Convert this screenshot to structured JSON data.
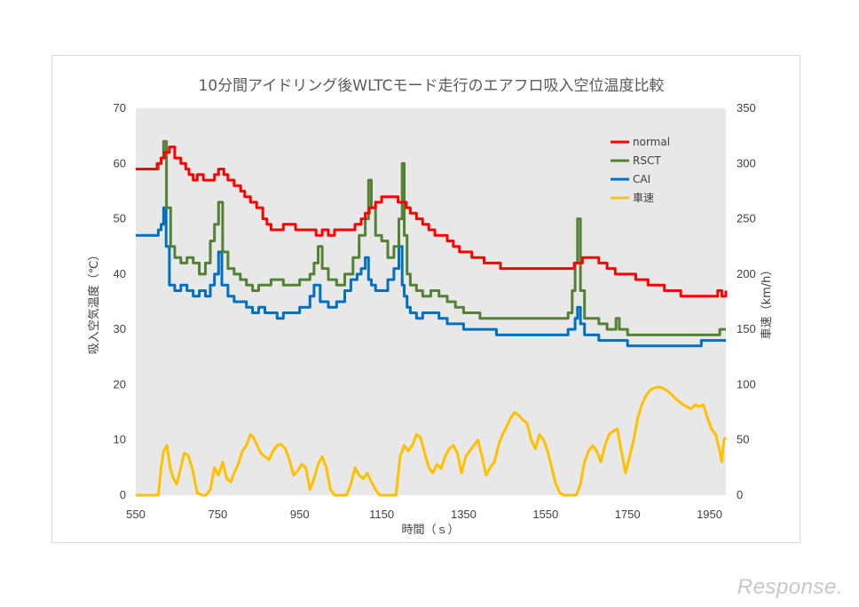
{
  "chart_data": {
    "type": "line",
    "title": "10分間アイドリング後WLTCモード走行のエアフロ吸入空位温度比較",
    "xlabel": "時間（ｓ）",
    "ylabel": "吸入空気温度（℃）",
    "y2label": "車速（km/h）",
    "xlim": [
      550,
      1990
    ],
    "ylim": [
      0,
      70
    ],
    "y2lim": [
      0,
      350
    ],
    "x_ticks": [
      550,
      750,
      950,
      1150,
      1350,
      1550,
      1750,
      1950
    ],
    "y_ticks": [
      0,
      10,
      20,
      30,
      40,
      50,
      60,
      70
    ],
    "y2_ticks": [
      0,
      50,
      100,
      150,
      200,
      250,
      300,
      350
    ],
    "grid": false,
    "legend_position": "top-right",
    "series": [
      {
        "name": "normal",
        "color": "#ff0000",
        "axis": "left",
        "x": [
          550,
          598,
          602,
          612,
          620,
          632,
          645,
          660,
          672,
          680,
          690,
          700,
          715,
          730,
          742,
          752,
          765,
          775,
          790,
          806,
          816,
          830,
          845,
          860,
          870,
          880,
          895,
          910,
          925,
          940,
          960,
          975,
          990,
          1005,
          1020,
          1035,
          1050,
          1065,
          1085,
          1100,
          1110,
          1120,
          1135,
          1150,
          1170,
          1190,
          1200,
          1210,
          1220,
          1235,
          1250,
          1265,
          1280,
          1295,
          1310,
          1325,
          1340,
          1355,
          1370,
          1385,
          1400,
          1420,
          1440,
          1460,
          1480,
          1500,
          1520,
          1540,
          1560,
          1580,
          1600,
          1620,
          1640,
          1660,
          1680,
          1700,
          1720,
          1735,
          1750,
          1770,
          1800,
          1840,
          1880,
          1920,
          1950,
          1960,
          1970,
          1980,
          1990
        ],
        "y": [
          59,
          59,
          60,
          61,
          62,
          63,
          61,
          60,
          59,
          58,
          57,
          58,
          57,
          57,
          58,
          59,
          58,
          57,
          56,
          55,
          54,
          53,
          52,
          50,
          49,
          48,
          48,
          49,
          49,
          48,
          48,
          48,
          47,
          48,
          47,
          48,
          48,
          48,
          49,
          50,
          51,
          52,
          53,
          54,
          54,
          53,
          53,
          52,
          51,
          50,
          49,
          48,
          47,
          47,
          46,
          45,
          44,
          44,
          43,
          43,
          42,
          42,
          41,
          41,
          41,
          41,
          41,
          41,
          41,
          41,
          41,
          42,
          43,
          43,
          42,
          41,
          40,
          40,
          40,
          39,
          38,
          37,
          36,
          36,
          36,
          36,
          37,
          36,
          37
        ]
      },
      {
        "name": "RSCT",
        "color": "#548235",
        "axis": "left",
        "x": [
          550,
          598,
          605,
          612,
          618,
          625,
          635,
          645,
          660,
          675,
          690,
          705,
          720,
          732,
          742,
          752,
          762,
          775,
          790,
          805,
          820,
          835,
          850,
          865,
          880,
          895,
          910,
          930,
          950,
          965,
          975,
          985,
          995,
          1005,
          1020,
          1040,
          1060,
          1080,
          1095,
          1110,
          1118,
          1125,
          1135,
          1150,
          1165,
          1180,
          1192,
          1200,
          1205,
          1212,
          1220,
          1235,
          1250,
          1270,
          1290,
          1310,
          1330,
          1350,
          1370,
          1390,
          1410,
          1430,
          1450,
          1470,
          1490,
          1510,
          1530,
          1550,
          1570,
          1590,
          1605,
          1615,
          1622,
          1628,
          1635,
          1645,
          1660,
          1680,
          1700,
          1715,
          1722,
          1730,
          1750,
          1780,
          1810,
          1840,
          1870,
          1900,
          1930,
          1960,
          1975,
          1990
        ],
        "y": [
          59,
          59,
          60,
          61,
          64,
          52,
          45,
          43,
          42,
          43,
          42,
          40,
          42,
          46,
          49,
          53,
          44,
          41,
          40,
          39,
          38,
          37,
          38,
          38,
          39,
          39,
          38,
          38,
          39,
          39,
          40,
          42,
          45,
          41,
          39,
          38,
          40,
          43,
          47,
          50,
          57,
          52,
          47,
          46,
          43,
          45,
          50,
          60,
          47,
          40,
          38,
          37,
          36,
          37,
          36,
          35,
          34,
          33,
          33,
          32,
          32,
          32,
          32,
          32,
          32,
          32,
          32,
          32,
          32,
          32,
          33,
          37,
          42,
          50,
          37,
          32,
          32,
          31,
          30,
          30,
          32,
          30,
          29,
          29,
          29,
          29,
          29,
          29,
          29,
          29,
          30,
          30
        ]
      },
      {
        "name": "CAI",
        "color": "#0070c0",
        "axis": "left",
        "x": [
          550,
          598,
          605,
          612,
          618,
          624,
          632,
          645,
          660,
          675,
          690,
          705,
          720,
          732,
          742,
          752,
          760,
          775,
          790,
          805,
          820,
          835,
          850,
          865,
          880,
          895,
          910,
          930,
          950,
          965,
          975,
          985,
          1000,
          1020,
          1040,
          1060,
          1075,
          1090,
          1100,
          1110,
          1118,
          1125,
          1135,
          1150,
          1165,
          1180,
          1192,
          1200,
          1205,
          1212,
          1220,
          1235,
          1250,
          1270,
          1290,
          1310,
          1330,
          1350,
          1370,
          1390,
          1410,
          1430,
          1450,
          1470,
          1490,
          1510,
          1530,
          1550,
          1570,
          1590,
          1605,
          1615,
          1622,
          1628,
          1635,
          1645,
          1660,
          1680,
          1700,
          1720,
          1735,
          1750,
          1780,
          1810,
          1840,
          1870,
          1900,
          1930,
          1960,
          1975,
          1990
        ],
        "y": [
          47,
          47,
          48,
          49,
          52,
          45,
          38,
          37,
          38,
          37,
          36,
          37,
          36,
          38,
          40,
          44,
          38,
          36,
          35,
          35,
          34,
          33,
          34,
          33,
          33,
          32,
          33,
          33,
          34,
          34,
          36,
          38,
          35,
          34,
          35,
          37,
          39,
          40,
          41,
          43,
          39,
          38,
          37,
          37,
          39,
          41,
          45,
          38,
          36,
          34,
          33,
          32,
          33,
          33,
          32,
          31,
          31,
          30,
          30,
          30,
          30,
          29,
          29,
          29,
          29,
          29,
          29,
          29,
          29,
          29,
          30,
          30,
          32,
          34,
          31,
          29,
          29,
          28,
          28,
          28,
          28,
          27,
          27,
          27,
          27,
          27,
          27,
          28,
          28,
          28,
          28
        ]
      },
      {
        "name": "車速",
        "color": "#ffc000",
        "axis": "right",
        "x": [
          550,
          568,
          588,
          605,
          612,
          618,
          626,
          634,
          642,
          650,
          660,
          668,
          678,
          688,
          700,
          712,
          722,
          732,
          742,
          752,
          762,
          772,
          782,
          790,
          800,
          810,
          820,
          830,
          838,
          846,
          855,
          865,
          875,
          885,
          895,
          905,
          915,
          925,
          935,
          945,
          955,
          965,
          975,
          985,
          995,
          1005,
          1015,
          1025,
          1035,
          1045,
          1055,
          1065,
          1075,
          1085,
          1095,
          1105,
          1115,
          1125,
          1135,
          1145,
          1155,
          1165,
          1175,
          1185,
          1195,
          1205,
          1215,
          1225,
          1235,
          1245,
          1255,
          1265,
          1275,
          1285,
          1295,
          1305,
          1315,
          1325,
          1335,
          1345,
          1355,
          1365,
          1375,
          1385,
          1395,
          1405,
          1415,
          1425,
          1435,
          1445,
          1455,
          1465,
          1475,
          1485,
          1495,
          1505,
          1515,
          1525,
          1535,
          1545,
          1555,
          1565,
          1575,
          1585,
          1595,
          1605,
          1615,
          1625,
          1635,
          1645,
          1655,
          1665,
          1675,
          1685,
          1695,
          1705,
          1715,
          1725,
          1735,
          1745,
          1755,
          1765,
          1775,
          1785,
          1795,
          1805,
          1815,
          1825,
          1835,
          1845,
          1855,
          1865,
          1875,
          1885,
          1895,
          1905,
          1915,
          1925,
          1935,
          1945,
          1955,
          1965,
          1975,
          1980,
          1985,
          1990
        ],
        "y": [
          0,
          0,
          0,
          0,
          25,
          40,
          45,
          25,
          15,
          10,
          25,
          38,
          36,
          24,
          2,
          0,
          0,
          5,
          25,
          18,
          30,
          15,
          12,
          20,
          28,
          40,
          45,
          55,
          52,
          45,
          38,
          35,
          32,
          40,
          45,
          46,
          42,
          32,
          18,
          22,
          28,
          25,
          5,
          15,
          28,
          35,
          25,
          5,
          0,
          0,
          0,
          0,
          10,
          25,
          18,
          15,
          20,
          12,
          5,
          0,
          0,
          0,
          0,
          0,
          35,
          45,
          40,
          45,
          55,
          52,
          38,
          25,
          20,
          28,
          24,
          35,
          42,
          45,
          38,
          20,
          35,
          40,
          45,
          50,
          35,
          18,
          25,
          30,
          45,
          55,
          62,
          70,
          75,
          72,
          68,
          65,
          50,
          42,
          55,
          50,
          40,
          25,
          10,
          2,
          0,
          0,
          0,
          0,
          10,
          30,
          40,
          45,
          40,
          30,
          45,
          55,
          58,
          60,
          40,
          20,
          35,
          50,
          70,
          82,
          90,
          95,
          97,
          98,
          97,
          95,
          92,
          88,
          85,
          82,
          80,
          78,
          82,
          80,
          82,
          70,
          60,
          55,
          40,
          30,
          50,
          52
        ]
      }
    ]
  },
  "watermark": "Response."
}
